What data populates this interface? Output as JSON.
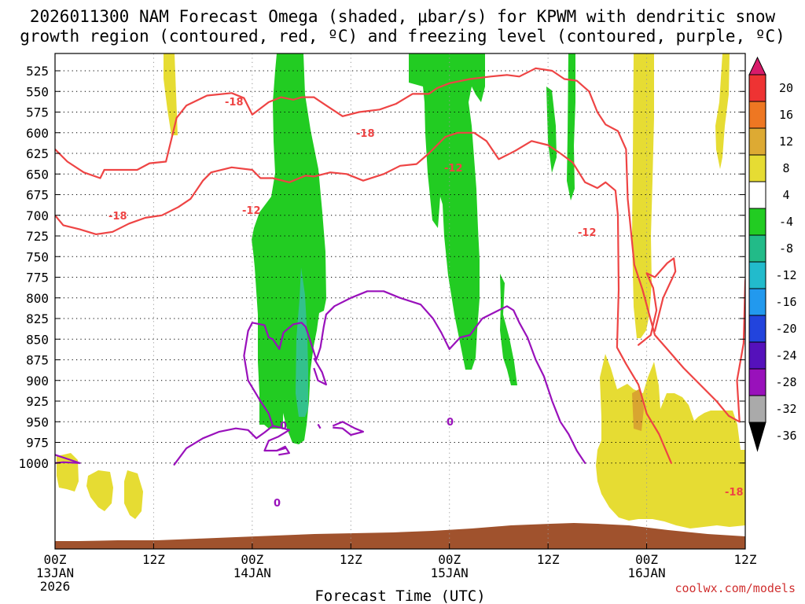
{
  "chart_data": {
    "type": "time-height cross section",
    "title_line1": "2026011300 NAM Forecast Omega (shaded, μbar/s) for KPWM with dendritic snow",
    "title_line2": "growth region (contoured, red, ºC) and freezing level (contoured, purple, ºC)",
    "xlabel": "Forecast Time (UTC)",
    "credit": "coolwx.com/models",
    "pressure_levels": [
      525,
      550,
      575,
      600,
      625,
      650,
      675,
      700,
      725,
      750,
      775,
      800,
      825,
      850,
      875,
      900,
      925,
      950,
      975,
      1000
    ],
    "x_range_hours": [
      0,
      84
    ],
    "x_ticks": [
      {
        "hour": 0,
        "lines": [
          "00Z",
          "13JAN",
          "2026"
        ]
      },
      {
        "hour": 12,
        "lines": [
          "12Z"
        ]
      },
      {
        "hour": 24,
        "lines": [
          "00Z",
          "14JAN"
        ]
      },
      {
        "hour": 36,
        "lines": [
          "12Z"
        ]
      },
      {
        "hour": 48,
        "lines": [
          "00Z",
          "15JAN"
        ]
      },
      {
        "hour": 60,
        "lines": [
          "12Z"
        ]
      },
      {
        "hour": 72,
        "lines": [
          "00Z",
          "16JAN"
        ]
      },
      {
        "hour": 84,
        "lines": [
          "12Z"
        ]
      }
    ],
    "colorbar": {
      "ticks": [
        "20",
        "16",
        "12",
        "8",
        "4",
        "-4",
        "-8",
        "-12",
        "-16",
        "-20",
        "-24",
        "-28",
        "-32",
        "-36"
      ],
      "colors": [
        "#d81b6a",
        "#ee3333",
        "#ee7722",
        "#ddaa33",
        "#e6dc33",
        "#ffffff",
        "#22cc22",
        "#22bb88",
        "#22bbcc",
        "#2299ee",
        "#2244dd",
        "#5511bb",
        "#9911bb",
        "#aaaaaa",
        "#000000"
      ]
    },
    "shading_colors": {
      "green": "#22cc22",
      "teal": "#33c18c",
      "yellow": "#e6dc33",
      "orange": "#d9a530",
      "terrain": "#a0522d"
    },
    "contour_colors": {
      "dgz": "#ee4444",
      "freezing": "#9911bb"
    },
    "contour_labels": {
      "red_minus18": "-18",
      "red_minus12": "-12",
      "purple_zero": "0"
    },
    "series": [
      {
        "name": "-18C isotherm (upper)",
        "points": [
          [
            6.0,
            645
          ],
          [
            10,
            645
          ],
          [
            11.5,
            637
          ],
          [
            13.5,
            635
          ],
          [
            14.8,
            582
          ],
          [
            16,
            567
          ],
          [
            18.5,
            555
          ],
          [
            21.5,
            552
          ],
          [
            23.0,
            558
          ],
          [
            24.0,
            578
          ],
          [
            26.0,
            563
          ],
          [
            27.5,
            557
          ],
          [
            29.0,
            560
          ],
          [
            30.0,
            557
          ],
          [
            31.5,
            557
          ],
          [
            33.0,
            567
          ],
          [
            35.0,
            580
          ],
          [
            37.0,
            575
          ],
          [
            39.5,
            572
          ],
          [
            41.5,
            565
          ],
          [
            43.5,
            553
          ],
          [
            45.5,
            553
          ],
          [
            46.5,
            546
          ],
          [
            48.0,
            540
          ],
          [
            50.5,
            535
          ],
          [
            53.0,
            532
          ],
          [
            55.0,
            530
          ],
          [
            56.5,
            532
          ],
          [
            58.5,
            522
          ],
          [
            60.5,
            525
          ],
          [
            62.0,
            535
          ],
          [
            63.5,
            537
          ],
          [
            65.0,
            550
          ],
          [
            66.0,
            575
          ],
          [
            67.0,
            590
          ],
          [
            68.5,
            598
          ],
          [
            69.5,
            620
          ],
          [
            69.7,
            680
          ],
          [
            70.5,
            760
          ],
          [
            71.5,
            790
          ],
          [
            73.0,
            845
          ],
          [
            74.5,
            862
          ],
          [
            76.5,
            885
          ],
          [
            78.5,
            905
          ],
          [
            80.5,
            925
          ],
          [
            82.0,
            943
          ],
          [
            83.3,
            950
          ],
          [
            83.0,
            900
          ],
          [
            83.8,
            855
          ],
          [
            84.0,
            780
          ],
          [
            84.3,
            758
          ]
        ]
      },
      {
        "name": "-18C isotherm (lower left)",
        "points": [
          [
            0.0,
            620
          ],
          [
            1.5,
            635
          ],
          [
            3.5,
            648
          ],
          [
            5.5,
            655
          ],
          [
            6.0,
            645
          ]
        ]
      },
      {
        "name": "-12C isotherm",
        "points": [
          [
            0.0,
            700
          ],
          [
            1.0,
            712
          ],
          [
            3.0,
            717
          ],
          [
            5.0,
            723
          ],
          [
            7.0,
            720
          ],
          [
            9.0,
            710
          ],
          [
            11.0,
            703
          ],
          [
            13.0,
            700
          ],
          [
            15.0,
            690
          ],
          [
            16.5,
            680
          ],
          [
            18.0,
            658
          ],
          [
            19.0,
            648
          ],
          [
            21.5,
            642
          ],
          [
            24.0,
            645
          ],
          [
            25.0,
            655
          ],
          [
            26.5,
            655
          ],
          [
            28.5,
            660
          ],
          [
            30.5,
            652
          ],
          [
            31.5,
            653
          ],
          [
            33.5,
            648
          ],
          [
            35.5,
            650
          ],
          [
            37.5,
            658
          ],
          [
            40.0,
            650
          ],
          [
            42.0,
            640
          ],
          [
            44.0,
            638
          ],
          [
            45.5,
            625
          ],
          [
            47.5,
            605
          ],
          [
            49.0,
            600
          ],
          [
            51.0,
            600
          ],
          [
            52.5,
            610
          ],
          [
            54.0,
            632
          ],
          [
            56.0,
            622
          ],
          [
            58.0,
            610
          ],
          [
            60.0,
            615
          ],
          [
            61.5,
            625
          ],
          [
            63.0,
            636
          ],
          [
            64.5,
            660
          ],
          [
            66.0,
            667
          ],
          [
            67.0,
            660
          ],
          [
            68.2,
            670
          ],
          [
            68.5,
            700
          ],
          [
            68.6,
            790
          ],
          [
            68.4,
            860
          ],
          [
            69.5,
            880
          ],
          [
            71.0,
            905
          ],
          [
            72.0,
            940
          ],
          [
            73.5,
            965
          ],
          [
            75.0,
            1000
          ]
        ]
      },
      {
        "name": "-12C isotherm (loop)",
        "points": [
          [
            71.0,
            857
          ],
          [
            72.5,
            845
          ],
          [
            73.2,
            815
          ],
          [
            72.8,
            788
          ],
          [
            72.0,
            770
          ],
          [
            73.0,
            775
          ],
          [
            74.5,
            758
          ],
          [
            75.3,
            752
          ],
          [
            75.5,
            768
          ],
          [
            74.0,
            800
          ],
          [
            73.0,
            840
          ]
        ]
      },
      {
        "name": "0C freezing level (main)",
        "points": [
          [
            14.5,
            1002
          ],
          [
            16.0,
            982
          ],
          [
            18.0,
            970
          ],
          [
            20.0,
            962
          ],
          [
            22.0,
            958
          ],
          [
            23.5,
            960
          ],
          [
            24.5,
            970
          ],
          [
            25.5,
            963
          ],
          [
            26.5,
            955
          ],
          [
            27.8,
            958
          ],
          [
            28.5,
            960
          ],
          [
            27.2,
            968
          ],
          [
            26.0,
            973
          ],
          [
            25.5,
            985
          ],
          [
            27.0,
            985
          ],
          [
            28.0,
            982
          ]
        ]
      },
      {
        "name": "0C freezing level (upper)",
        "points": [
          [
            23.5,
            840
          ],
          [
            24.0,
            830
          ],
          [
            25.5,
            833
          ],
          [
            26.0,
            848
          ],
          [
            26.5,
            850
          ],
          [
            27.3,
            862
          ],
          [
            27.8,
            842
          ],
          [
            29.0,
            832
          ],
          [
            30.0,
            830
          ],
          [
            30.5,
            835
          ],
          [
            31.0,
            850
          ],
          [
            31.8,
            875
          ],
          [
            32.3,
            860
          ],
          [
            32.7,
            835
          ],
          [
            33.0,
            820
          ],
          [
            34.0,
            810
          ],
          [
            36.0,
            800
          ],
          [
            38.0,
            792
          ],
          [
            40.0,
            792
          ],
          [
            42.0,
            800
          ],
          [
            44.5,
            808
          ],
          [
            46.0,
            825
          ],
          [
            47.0,
            842
          ],
          [
            48.0,
            862
          ],
          [
            49.3,
            848
          ],
          [
            50.5,
            845
          ],
          [
            52.0,
            825
          ],
          [
            54.0,
            815
          ],
          [
            55.0,
            810
          ],
          [
            55.8,
            815
          ],
          [
            56.5,
            830
          ],
          [
            57.5,
            848
          ],
          [
            58.5,
            875
          ],
          [
            59.5,
            895
          ],
          [
            60.5,
            925
          ],
          [
            61.5,
            950
          ],
          [
            62.5,
            965
          ],
          [
            63.5,
            985
          ],
          [
            64.5,
            1000
          ]
        ]
      },
      {
        "name": "0C freezing level (left spur)",
        "points": [
          [
            23.5,
            840
          ],
          [
            23.0,
            870
          ],
          [
            23.5,
            900
          ],
          [
            25.0,
            925
          ],
          [
            26.0,
            940
          ],
          [
            26.5,
            955
          ]
        ]
      }
    ]
  }
}
